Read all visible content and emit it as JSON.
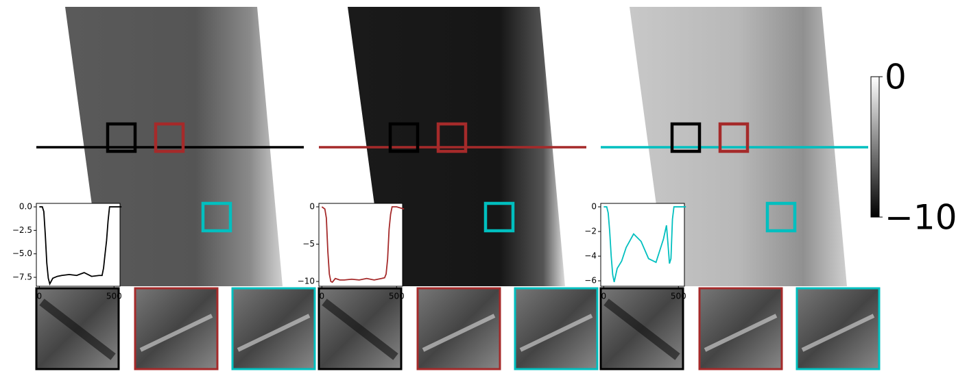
{
  "chart_data": [
    {
      "type": "line",
      "x": [
        0,
        20,
        30,
        40,
        50,
        60,
        70,
        90,
        120,
        150,
        200,
        250,
        300,
        350,
        400,
        420,
        430,
        440,
        450,
        460,
        470,
        500,
        550
      ],
      "series": [
        {
          "color": "#000000",
          "values": [
            0,
            0,
            -0.5,
            -3,
            -6,
            -7.6,
            -8.2,
            -7.6,
            -7.4,
            -7.3,
            -7.2,
            -7.3,
            -7.0,
            -7.4,
            -7.3,
            -7.3,
            -6.5,
            -5.0,
            -3.6,
            -1.5,
            0,
            0,
            0
          ]
        }
      ],
      "xlim": [
        -20,
        540
      ],
      "xticks": [
        0,
        500
      ],
      "ylim": [
        -8.45,
        0.37
      ],
      "yticks": [
        {
          "value": 0,
          "label": "0.0"
        },
        {
          "value": -2.5,
          "label": "−2.5"
        },
        {
          "value": -5,
          "label": "−5.0"
        },
        {
          "value": -7.5,
          "label": "−7.5"
        }
      ]
    },
    {
      "type": "line",
      "x": [
        0,
        20,
        30,
        40,
        50,
        60,
        70,
        90,
        120,
        150,
        200,
        250,
        300,
        350,
        400,
        420,
        430,
        440,
        450,
        460,
        470,
        500,
        550
      ],
      "series": [
        {
          "color": "#a52a2a",
          "values": [
            0,
            -0.3,
            -1.5,
            -6,
            -9,
            -10,
            -10.1,
            -9.6,
            -9.8,
            -9.8,
            -9.7,
            -9.8,
            -9.6,
            -9.8,
            -9.6,
            -9.5,
            -9,
            -7,
            -3,
            -1,
            0,
            0,
            -0.3
          ]
        }
      ],
      "xlim": [
        -20,
        540
      ],
      "xticks": [
        0,
        500
      ],
      "ylim": [
        -10.64,
        0.46
      ],
      "yticks": [
        0,
        {
          "value": -5,
          "label": "−5"
        },
        {
          "value": -10,
          "label": "−10"
        }
      ]
    },
    {
      "type": "line",
      "x": [
        0,
        20,
        30,
        40,
        50,
        60,
        70,
        90,
        120,
        150,
        200,
        250,
        300,
        350,
        400,
        420,
        430,
        440,
        450,
        460,
        470,
        500,
        550
      ],
      "series": [
        {
          "color": "#00bfbf",
          "values": [
            0,
            0,
            -0.5,
            -2,
            -4,
            -5.5,
            -6.1,
            -5.0,
            -4.4,
            -3.3,
            -2.2,
            -2.8,
            -4.2,
            -4.5,
            -2.6,
            -1.5,
            -3.0,
            -4.6,
            -4.2,
            -1,
            0,
            0,
            0
          ]
        }
      ],
      "xlim": [
        -20,
        540
      ],
      "xticks": [
        0,
        500
      ],
      "ylim": [
        -6.44,
        0.28
      ],
      "yticks": [
        0,
        {
          "value": -2,
          "label": "−2"
        },
        {
          "value": -4,
          "label": "−4"
        },
        {
          "value": -6,
          "label": "−6"
        }
      ]
    },
    {
      "type": "colorbar",
      "colors": [
        "#000000",
        "#ffffff"
      ],
      "ylim": [
        -10,
        0
      ],
      "yticks": [
        0,
        {
          "value": -10,
          "label": "−10"
        }
      ]
    }
  ]
}
